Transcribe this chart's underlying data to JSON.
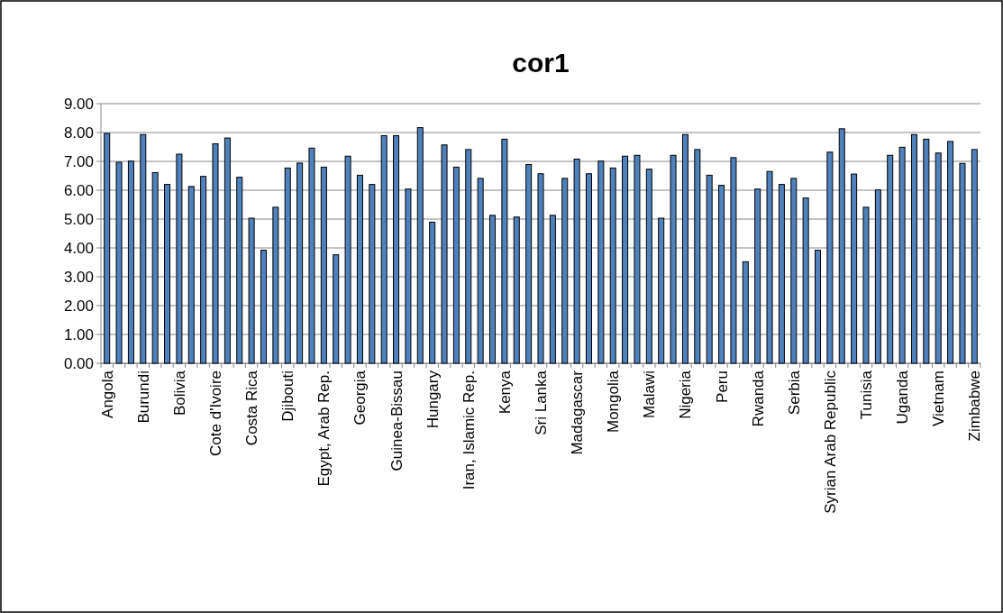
{
  "chart_data": {
    "type": "bar",
    "title": "cor1",
    "categories": [
      "Angola",
      null,
      null,
      "Burundi",
      null,
      null,
      "Bolivia",
      null,
      null,
      "Cote d'Ivoire",
      null,
      null,
      "Costa Rica",
      null,
      null,
      "Djibouti",
      null,
      null,
      "Egypt, Arab Rep.",
      null,
      null,
      "Georgia",
      null,
      null,
      "Guinea-Bissau",
      null,
      null,
      "Hungary",
      null,
      null,
      "Iran, Islamic Rep.",
      null,
      null,
      "Kenya",
      null,
      null,
      "Sri Lanka",
      null,
      null,
      "Madagascar",
      null,
      null,
      "Mongolia",
      null,
      null,
      "Malawi",
      null,
      null,
      "Nigeria",
      null,
      null,
      "Peru",
      null,
      null,
      "Rwanda",
      null,
      null,
      "Serbia",
      null,
      null,
      "Syrian Arab Republic",
      null,
      null,
      "Tunisia",
      null,
      null,
      "Uganda",
      null,
      null,
      "Vietnam",
      null,
      null,
      "Zimbabwe"
    ],
    "values": [
      7.97,
      6.97,
      7.01,
      7.93,
      6.61,
      6.2,
      7.25,
      6.13,
      6.48,
      7.61,
      7.81,
      6.45,
      5.03,
      3.92,
      5.41,
      6.77,
      6.94,
      7.46,
      6.8,
      3.76,
      7.18,
      6.52,
      6.2,
      7.89,
      7.89,
      6.04,
      8.17,
      4.89,
      7.57,
      6.8,
      7.41,
      6.41,
      5.13,
      7.77,
      5.07,
      6.89,
      6.57,
      5.13,
      6.41,
      7.08,
      6.57,
      7.01,
      6.77,
      7.18,
      7.21,
      6.73,
      5.03,
      7.21,
      7.93,
      7.41,
      6.52,
      6.17,
      7.13,
      3.52,
      6.04,
      6.65,
      6.2,
      6.41,
      5.73,
      3.92,
      7.32,
      8.13,
      6.56,
      5.41,
      6.01,
      7.21,
      7.49,
      7.93,
      7.77,
      7.29,
      7.69,
      6.93,
      7.41
    ],
    "color": "#4f81bd",
    "ylim": [
      0,
      9
    ],
    "yticks": [
      {
        "value": 0,
        "label": "0.00"
      },
      {
        "value": 1,
        "label": "1.00"
      },
      {
        "value": 2,
        "label": "2.00"
      },
      {
        "value": 3,
        "label": "3.00"
      },
      {
        "value": 4,
        "label": "4.00"
      },
      {
        "value": 5,
        "label": "5.00"
      },
      {
        "value": 6,
        "label": "6.00"
      },
      {
        "value": 7,
        "label": "7.00"
      },
      {
        "value": 8,
        "label": "8.00"
      },
      {
        "value": 9,
        "label": "9.00"
      }
    ],
    "grid": "y"
  }
}
